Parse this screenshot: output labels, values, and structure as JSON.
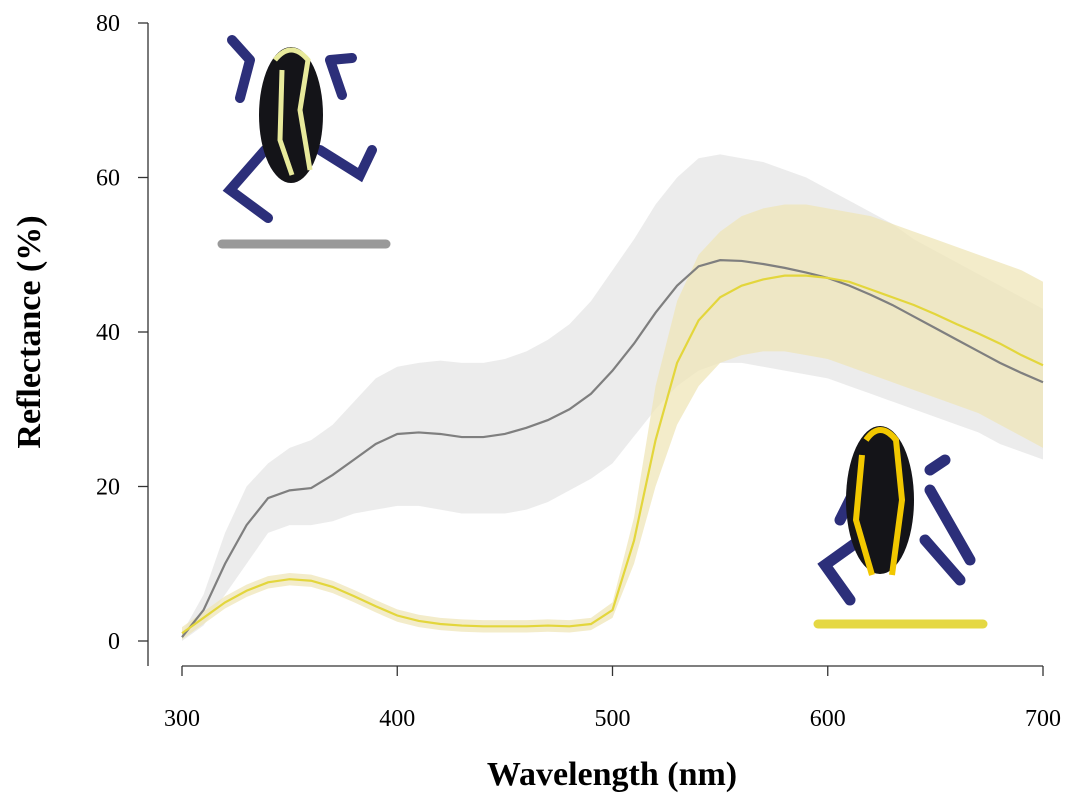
{
  "chart_data": {
    "type": "line",
    "x_label": "Wavelength (nm)",
    "y_label": "Reflectance (%)",
    "xlim": [
      300,
      700
    ],
    "ylim": [
      0,
      80
    ],
    "xticks": [
      300,
      400,
      500,
      600,
      700
    ],
    "yticks": [
      0,
      20,
      40,
      60,
      80
    ],
    "x": [
      300,
      310,
      320,
      330,
      340,
      350,
      360,
      370,
      380,
      390,
      400,
      410,
      420,
      430,
      440,
      450,
      460,
      470,
      480,
      490,
      500,
      510,
      520,
      530,
      540,
      550,
      560,
      570,
      580,
      590,
      600,
      610,
      620,
      630,
      640,
      650,
      660,
      670,
      680,
      690,
      700
    ],
    "series": [
      {
        "color": "#7f7f7f",
        "band_color": "#e6e6e6",
        "values": [
          0.5,
          4,
          10,
          15,
          18.5,
          19.5,
          19.8,
          21.5,
          23.5,
          25.5,
          26.8,
          27,
          26.8,
          26.4,
          26.4,
          26.8,
          27.6,
          28.6,
          30,
          32,
          35,
          38.5,
          42.5,
          46,
          48.5,
          49.3,
          49.2,
          48.8,
          48.3,
          47.7,
          47,
          46,
          44.8,
          43.5,
          42,
          40.5,
          39,
          37.5,
          36,
          34.7,
          33.5
        ],
        "upper": [
          1,
          6,
          14,
          20,
          23,
          25,
          26,
          28,
          31,
          34,
          35.5,
          36,
          36.3,
          36,
          36,
          36.5,
          37.5,
          39,
          41,
          44,
          48,
          52,
          56.5,
          60,
          62.5,
          63,
          62.5,
          62,
          61,
          60,
          58.5,
          57,
          55.5,
          54,
          52,
          50.5,
          49,
          47.5,
          46,
          44.5,
          43
        ],
        "lower": [
          0,
          2,
          6,
          10,
          14,
          15,
          15,
          15.5,
          16.5,
          17,
          17.5,
          17.5,
          17,
          16.5,
          16.5,
          16.5,
          17,
          18,
          19.5,
          21,
          23,
          26.5,
          30,
          33,
          35,
          36,
          36,
          35.5,
          35,
          34.5,
          34,
          33,
          32,
          31,
          30,
          29,
          28,
          27,
          25.5,
          24.5,
          23.5
        ]
      },
      {
        "color": "#e3d63c",
        "band_color": "#efe6b8",
        "values": [
          1,
          3,
          5,
          6.5,
          7.6,
          8,
          7.8,
          7,
          5.8,
          4.5,
          3.3,
          2.6,
          2.2,
          2,
          1.9,
          1.9,
          1.9,
          2,
          1.9,
          2.2,
          4,
          13,
          26,
          36,
          41.5,
          44.5,
          46,
          46.8,
          47.3,
          47.3,
          47,
          46.5,
          45.5,
          44.5,
          43.5,
          42.3,
          41,
          39.8,
          38.5,
          37,
          35.7
        ],
        "upper": [
          1.8,
          3.8,
          5.8,
          7.3,
          8.4,
          8.8,
          8.6,
          7.8,
          6.6,
          5.3,
          4.1,
          3.4,
          3,
          2.8,
          2.7,
          2.7,
          2.7,
          2.8,
          2.7,
          3,
          5,
          16,
          33,
          44,
          50,
          53,
          55,
          56,
          56.5,
          56.5,
          56,
          55.5,
          55,
          54,
          53,
          52,
          51,
          50,
          49,
          48,
          46.5
        ],
        "lower": [
          0.2,
          2.2,
          4.2,
          5.7,
          6.8,
          7.2,
          7,
          6.2,
          5,
          3.7,
          2.5,
          1.8,
          1.4,
          1.2,
          1.1,
          1.1,
          1.1,
          1.2,
          1.1,
          1.4,
          3,
          10,
          20,
          28,
          33,
          36,
          37,
          37.5,
          37.5,
          37,
          36.5,
          35.5,
          34.5,
          33.5,
          32.5,
          31.5,
          30.5,
          29.5,
          28,
          26.5,
          25
        ]
      }
    ]
  }
}
